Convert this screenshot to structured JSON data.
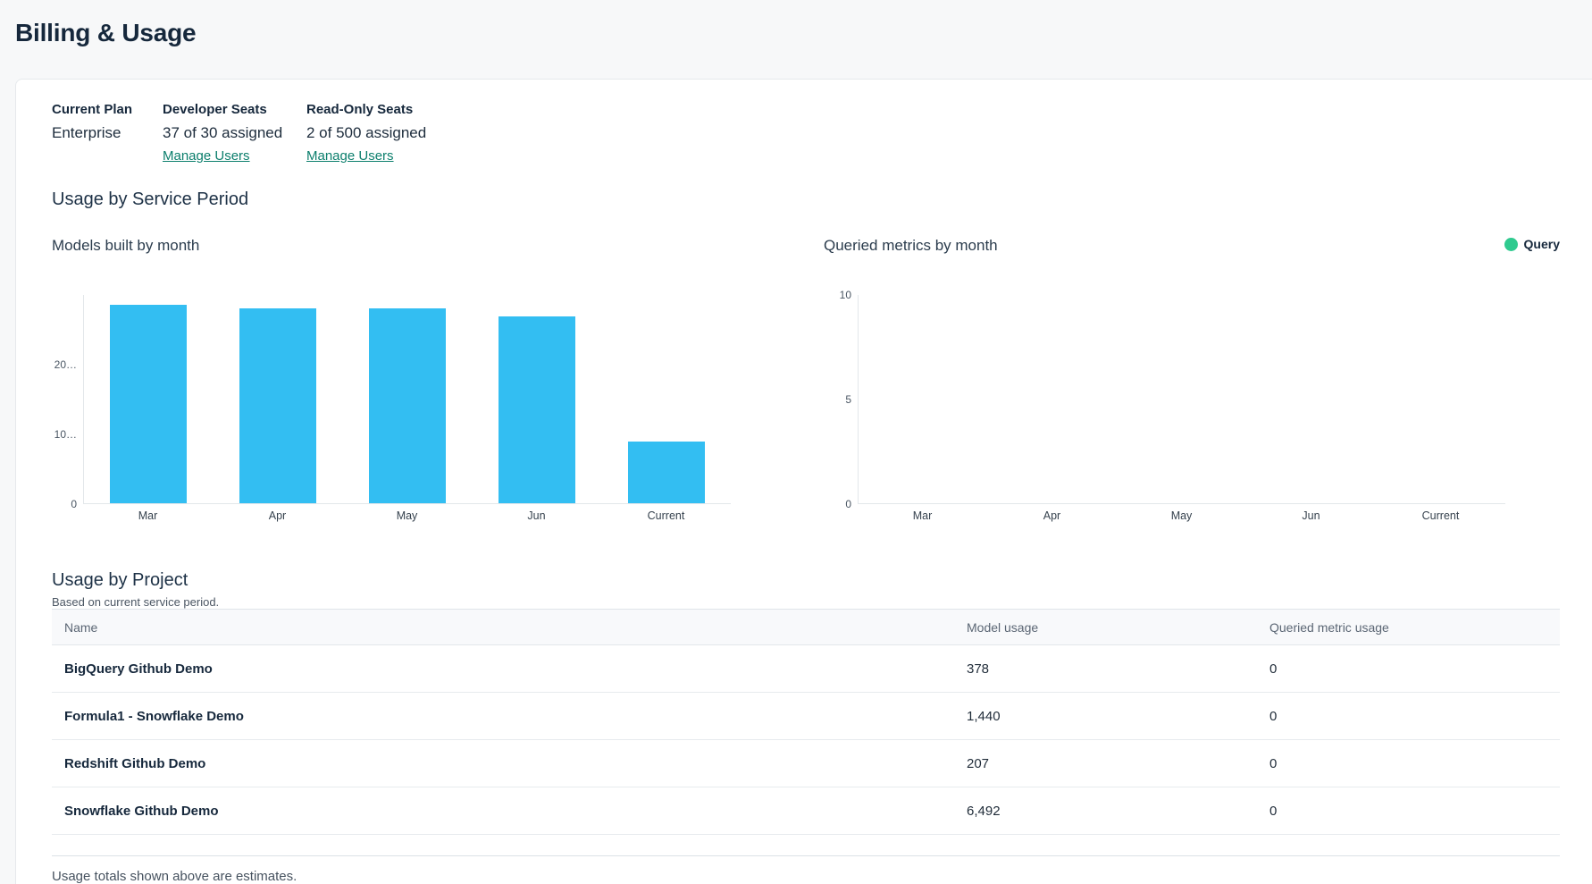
{
  "page": {
    "title": "Billing & Usage"
  },
  "colors": {
    "link_teal": "#0b7e6c",
    "bar_blue": "#33bef2",
    "legend_green": "#2fca8f",
    "ink": "#16283c",
    "page_bg": "#f7f8f9"
  },
  "plan": {
    "current_plan": {
      "label": "Current Plan",
      "value": "Enterprise"
    },
    "developer_seats": {
      "label": "Developer Seats",
      "value": "37 of 30 assigned",
      "link_label": "Manage Users"
    },
    "readonly_seats": {
      "label": "Read-Only Seats",
      "value": "2 of 500 assigned",
      "link_label": "Manage Users"
    }
  },
  "usage_section": {
    "title": "Usage by Service Period"
  },
  "chart_data": [
    {
      "type": "bar",
      "title": "Models built by month",
      "categories": [
        "Mar",
        "Apr",
        "May",
        "Jun",
        "Current"
      ],
      "values": [
        28400,
        28000,
        27900,
        26800,
        8900
      ],
      "ylim": [
        0,
        30000
      ],
      "yticks": [
        {
          "value": 0,
          "label": "0"
        },
        {
          "value": 10000,
          "label": "10…"
        },
        {
          "value": 20000,
          "label": "20…"
        }
      ],
      "bar_color": "#33bef2",
      "grid": false,
      "legend": null
    },
    {
      "type": "bar",
      "title": "Queried metrics by month",
      "categories": [
        "Mar",
        "Apr",
        "May",
        "Jun",
        "Current"
      ],
      "values": [
        0,
        0,
        0,
        0,
        0
      ],
      "ylim": [
        0,
        10
      ],
      "yticks": [
        {
          "value": 0,
          "label": "0"
        },
        {
          "value": 5,
          "label": "5"
        },
        {
          "value": 10,
          "label": "10"
        }
      ],
      "bar_color": "#2fca8f",
      "grid": false,
      "legend": {
        "label": "Query",
        "color": "#2fca8f"
      }
    }
  ],
  "project_section": {
    "title": "Usage by Project",
    "subtitle": "Based on current service period.",
    "table": {
      "columns": [
        "Name",
        "Model usage",
        "Queried metric usage"
      ],
      "rows": [
        {
          "name": "BigQuery Github Demo",
          "model_usage": "378",
          "queried_metric_usage": "0"
        },
        {
          "name": "Formula1 - Snowflake Demo",
          "model_usage": "1,440",
          "queried_metric_usage": "0"
        },
        {
          "name": "Redshift Github Demo",
          "model_usage": "207",
          "queried_metric_usage": "0"
        },
        {
          "name": "Snowflake Github Demo",
          "model_usage": "6,492",
          "queried_metric_usage": "0"
        }
      ]
    },
    "footnote": "Usage totals shown above are estimates."
  }
}
